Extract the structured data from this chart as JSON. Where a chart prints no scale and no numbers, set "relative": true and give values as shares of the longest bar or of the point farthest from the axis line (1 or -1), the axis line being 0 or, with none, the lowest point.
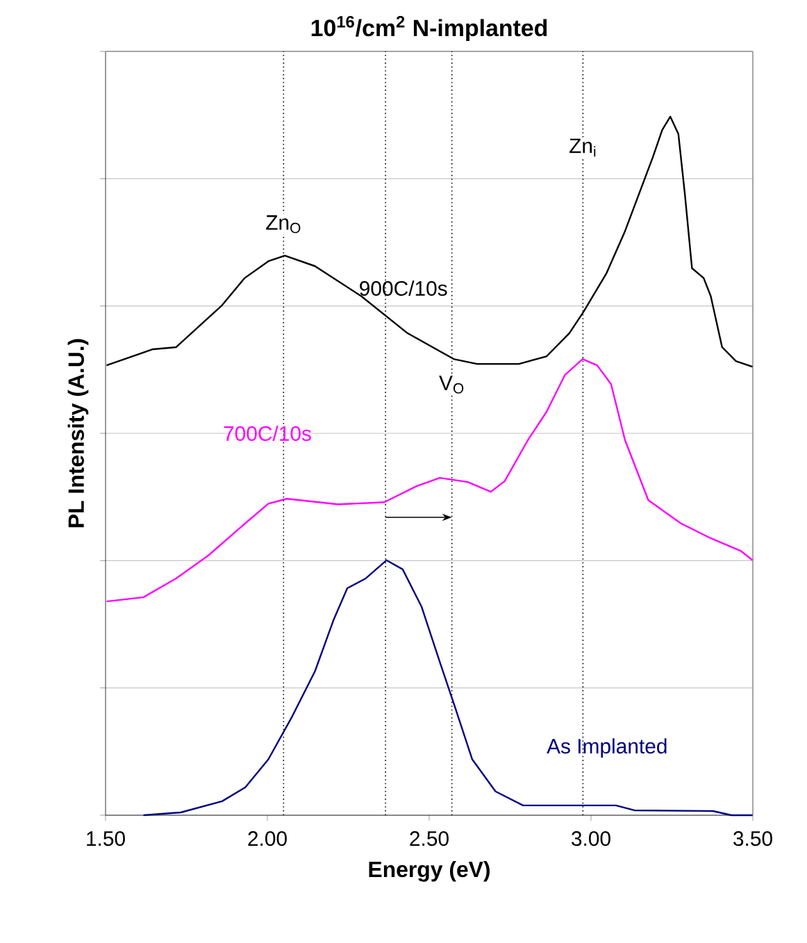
{
  "chart_data": {
    "type": "line",
    "title": "10$^{16}$/cm$^{2}$ N-implanted",
    "xlabel": "Energy (eV)",
    "ylabel": "PL Intensity (A.U.)",
    "relative": true,
    "xlim": [
      1.5,
      3.5
    ],
    "xticks": [
      {
        "value": 1.5,
        "label": "1.50"
      },
      {
        "value": 2.0,
        "label": "2.00"
      },
      {
        "value": 2.5,
        "label": "2.50"
      },
      {
        "value": 3.0,
        "label": "3.00"
      },
      {
        "value": 3.5,
        "label": "3.50"
      }
    ],
    "grid": "y",
    "marker": "none",
    "line_style": "solid",
    "series": [
      {
        "name": "900C/10s",
        "color": "#000000",
        "x": [
          1.503,
          1.646,
          1.718,
          1.86,
          1.93,
          2.003,
          2.054,
          2.147,
          2.29,
          2.433,
          2.576,
          2.648,
          2.777,
          2.863,
          2.933,
          2.976,
          3.048,
          3.105,
          3.148,
          3.191,
          3.22,
          3.245,
          3.27,
          3.29,
          3.312,
          3.348,
          3.37,
          3.405,
          3.448,
          3.499
        ],
        "values": [
          0.644,
          0.667,
          0.67,
          0.73,
          0.769,
          0.793,
          0.801,
          0.786,
          0.743,
          0.69,
          0.653,
          0.646,
          0.646,
          0.657,
          0.69,
          0.72,
          0.776,
          0.836,
          0.889,
          0.942,
          0.981,
          1.0,
          0.975,
          0.889,
          0.783,
          0.769,
          0.743,
          0.67,
          0.65,
          0.642
        ]
      },
      {
        "name": "700C/10s",
        "color": "#ff00ff",
        "x": [
          1.503,
          1.617,
          1.718,
          1.818,
          1.932,
          2.003,
          2.06,
          2.218,
          2.361,
          2.461,
          2.533,
          2.619,
          2.69,
          2.733,
          2.805,
          2.862,
          2.919,
          2.974,
          3.019,
          3.062,
          3.105,
          3.177,
          3.277,
          3.363,
          3.464,
          3.499
        ],
        "values": [
          0.306,
          0.312,
          0.339,
          0.372,
          0.418,
          0.446,
          0.453,
          0.445,
          0.448,
          0.471,
          0.483,
          0.477,
          0.463,
          0.478,
          0.537,
          0.577,
          0.63,
          0.653,
          0.644,
          0.617,
          0.537,
          0.451,
          0.418,
          0.398,
          0.378,
          0.365
        ]
      },
      {
        "name": "As Implanted",
        "color": "#000080",
        "x": [
          1.617,
          1.732,
          1.86,
          1.932,
          2.003,
          2.075,
          2.147,
          2.204,
          2.247,
          2.304,
          2.368,
          2.418,
          2.476,
          2.533,
          2.576,
          2.633,
          2.705,
          2.79,
          3.077,
          3.134,
          3.377,
          3.434,
          3.499
        ],
        "values": [
          0.0,
          0.004,
          0.02,
          0.04,
          0.08,
          0.14,
          0.206,
          0.279,
          0.325,
          0.339,
          0.365,
          0.352,
          0.299,
          0.219,
          0.16,
          0.08,
          0.034,
          0.014,
          0.014,
          0.007,
          0.006,
          0.0,
          0.0
        ]
      }
    ],
    "ref_lines": [
      {
        "axis": "x",
        "value": 2.05,
        "label": "Zn$_{O}$",
        "line_style": "dotted",
        "color": "#000000"
      },
      {
        "axis": "x",
        "value": 2.975,
        "label": "Zn$_{i}$",
        "line_style": "dotted",
        "color": "#000000"
      },
      {
        "axis": "x",
        "value": 2.57,
        "label": "V$_{O}$",
        "line_style": "dotted",
        "color": "#000000"
      },
      {
        "axis": "x",
        "value": 2.365,
        "line_style": "dotted",
        "color": "#000000"
      }
    ]
  }
}
